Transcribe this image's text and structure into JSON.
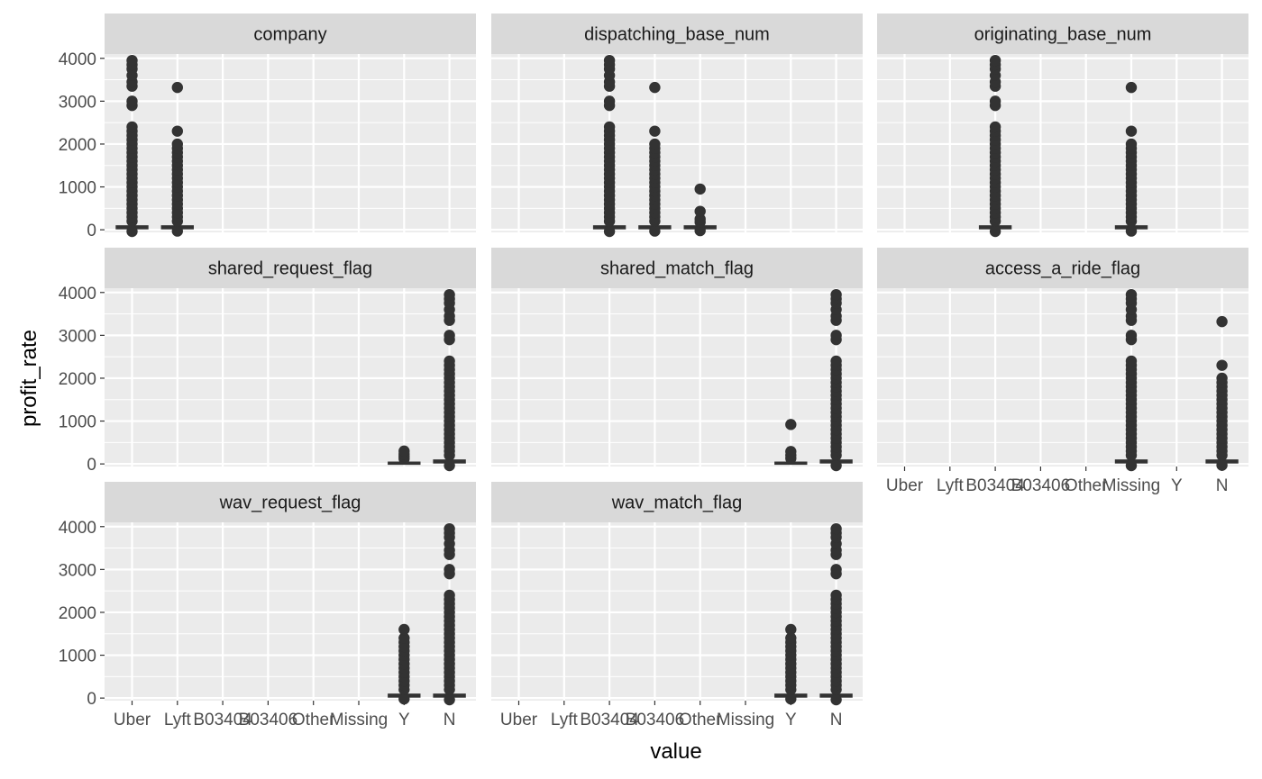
{
  "chart_data": {
    "type": "boxplot",
    "facet_by": "variable",
    "xlabel": "value",
    "ylabel": "profit_rate",
    "ylim": [
      -60,
      4100
    ],
    "yticks": [
      0,
      1000,
      2000,
      3000,
      4000
    ],
    "categories": [
      "Uber",
      "Lyft",
      "B03404",
      "B03406",
      "Other",
      "Missing",
      "Y",
      "N"
    ],
    "colors": {
      "panel": "#ebebeb",
      "strip": "#d9d9d9",
      "grid": "#ffffff",
      "marks": "#333333"
    },
    "facets": [
      {
        "label": "company",
        "boxes": [
          {
            "category": "Uber",
            "q1": 35,
            "median": 55,
            "q3": 80,
            "min": 0,
            "max": 180,
            "outliers": [
              -40,
              200,
              300,
              400,
              500,
              600,
              700,
              800,
              900,
              1000,
              1100,
              1200,
              1300,
              1400,
              1500,
              1600,
              1700,
              1800,
              1900,
              2000,
              2100,
              2200,
              2300,
              2400,
              2900,
              3000,
              3350,
              3450,
              3600,
              3750,
              3850,
              3950
            ]
          },
          {
            "category": "Lyft",
            "q1": 35,
            "median": 55,
            "q3": 80,
            "min": 0,
            "max": 180,
            "outliers": [
              -30,
              200,
              300,
              400,
              500,
              600,
              700,
              800,
              900,
              1000,
              1100,
              1200,
              1300,
              1400,
              1500,
              1600,
              1700,
              1800,
              1900,
              2000,
              2300,
              3320
            ]
          }
        ]
      },
      {
        "label": "dispatching_base_num",
        "boxes": [
          {
            "category": "B03404",
            "q1": 35,
            "median": 55,
            "q3": 80,
            "min": 0,
            "max": 180,
            "outliers": [
              -40,
              200,
              300,
              400,
              500,
              600,
              700,
              800,
              900,
              1000,
              1100,
              1200,
              1300,
              1400,
              1500,
              1600,
              1700,
              1800,
              1900,
              2000,
              2100,
              2200,
              2300,
              2400,
              2900,
              3000,
              3350,
              3450,
              3600,
              3750,
              3850,
              3950
            ]
          },
          {
            "category": "B03406",
            "q1": 35,
            "median": 55,
            "q3": 80,
            "min": 0,
            "max": 180,
            "outliers": [
              -30,
              200,
              300,
              400,
              500,
              600,
              700,
              800,
              900,
              1000,
              1100,
              1200,
              1300,
              1400,
              1500,
              1600,
              1700,
              1800,
              1900,
              2000,
              2300,
              3320
            ]
          },
          {
            "category": "Other",
            "q1": 35,
            "median": 55,
            "q3": 80,
            "min": 0,
            "max": 160,
            "outliers": [
              -20,
              180,
              250,
              430,
              950
            ]
          }
        ]
      },
      {
        "label": "originating_base_num",
        "boxes": [
          {
            "category": "B03404",
            "q1": 35,
            "median": 55,
            "q3": 80,
            "min": 0,
            "max": 180,
            "outliers": [
              -40,
              200,
              300,
              400,
              500,
              600,
              700,
              800,
              900,
              1000,
              1100,
              1200,
              1300,
              1400,
              1500,
              1600,
              1700,
              1800,
              1900,
              2000,
              2100,
              2200,
              2300,
              2400,
              2900,
              3000,
              3350,
              3450,
              3600,
              3750,
              3850,
              3950
            ]
          },
          {
            "category": "Missing",
            "q1": 35,
            "median": 55,
            "q3": 80,
            "min": 0,
            "max": 180,
            "outliers": [
              -30,
              200,
              300,
              400,
              500,
              600,
              700,
              800,
              900,
              1000,
              1100,
              1200,
              1300,
              1400,
              1500,
              1600,
              1700,
              1800,
              1900,
              2000,
              2300,
              3320
            ]
          }
        ]
      },
      {
        "label": "shared_request_flag",
        "boxes": [
          {
            "category": "Y",
            "q1": 5,
            "median": 15,
            "q3": 30,
            "min": 0,
            "max": 90,
            "outliers": [
              120,
              170,
              230,
              300
            ]
          },
          {
            "category": "N",
            "q1": 35,
            "median": 55,
            "q3": 80,
            "min": 0,
            "max": 180,
            "outliers": [
              -40,
              200,
              300,
              400,
              500,
              600,
              700,
              800,
              900,
              1000,
              1100,
              1200,
              1300,
              1400,
              1500,
              1600,
              1700,
              1800,
              1900,
              2000,
              2100,
              2200,
              2300,
              2400,
              2900,
              3000,
              3350,
              3450,
              3600,
              3750,
              3850,
              3950
            ]
          }
        ]
      },
      {
        "label": "shared_match_flag",
        "boxes": [
          {
            "category": "Y",
            "q1": 5,
            "median": 15,
            "q3": 30,
            "min": 0,
            "max": 90,
            "outliers": [
              130,
              200,
              290,
              920
            ]
          },
          {
            "category": "N",
            "q1": 35,
            "median": 55,
            "q3": 80,
            "min": 0,
            "max": 180,
            "outliers": [
              -40,
              200,
              300,
              400,
              500,
              600,
              700,
              800,
              900,
              1000,
              1100,
              1200,
              1300,
              1400,
              1500,
              1600,
              1700,
              1800,
              1900,
              2000,
              2100,
              2200,
              2300,
              2400,
              2900,
              3000,
              3350,
              3450,
              3600,
              3750,
              3850,
              3950
            ]
          }
        ]
      },
      {
        "label": "access_a_ride_flag",
        "boxes": [
          {
            "category": "Missing",
            "q1": 35,
            "median": 55,
            "q3": 80,
            "min": 0,
            "max": 180,
            "outliers": [
              -40,
              200,
              300,
              400,
              500,
              600,
              700,
              800,
              900,
              1000,
              1100,
              1200,
              1300,
              1400,
              1500,
              1600,
              1700,
              1800,
              1900,
              2000,
              2100,
              2200,
              2300,
              2400,
              2900,
              3000,
              3350,
              3450,
              3600,
              3750,
              3850,
              3950
            ]
          },
          {
            "category": "N",
            "q1": 35,
            "median": 55,
            "q3": 80,
            "min": 0,
            "max": 180,
            "outliers": [
              -30,
              200,
              300,
              400,
              500,
              600,
              700,
              800,
              900,
              1000,
              1100,
              1200,
              1300,
              1400,
              1500,
              1600,
              1700,
              1800,
              1900,
              2000,
              2300,
              3320
            ]
          }
        ]
      },
      {
        "label": "wav_request_flag",
        "boxes": [
          {
            "category": "Y",
            "q1": 35,
            "median": 55,
            "q3": 80,
            "min": 0,
            "max": 180,
            "outliers": [
              -20,
              200,
              300,
              400,
              500,
              600,
              700,
              800,
              900,
              1000,
              1100,
              1200,
              1300,
              1400,
              1600
            ]
          },
          {
            "category": "N",
            "q1": 35,
            "median": 55,
            "q3": 80,
            "min": 0,
            "max": 180,
            "outliers": [
              -40,
              200,
              300,
              400,
              500,
              600,
              700,
              800,
              900,
              1000,
              1100,
              1200,
              1300,
              1400,
              1500,
              1600,
              1700,
              1800,
              1900,
              2000,
              2100,
              2200,
              2300,
              2400,
              2900,
              3000,
              3350,
              3450,
              3600,
              3750,
              3850,
              3950
            ]
          }
        ]
      },
      {
        "label": "wav_match_flag",
        "boxes": [
          {
            "category": "Y",
            "q1": 35,
            "median": 55,
            "q3": 80,
            "min": 0,
            "max": 180,
            "outliers": [
              -20,
              200,
              300,
              400,
              500,
              600,
              700,
              800,
              900,
              1000,
              1100,
              1200,
              1300,
              1400,
              1600
            ]
          },
          {
            "category": "N",
            "q1": 35,
            "median": 55,
            "q3": 80,
            "min": 0,
            "max": 180,
            "outliers": [
              -40,
              200,
              300,
              400,
              500,
              600,
              700,
              800,
              900,
              1000,
              1100,
              1200,
              1300,
              1400,
              1500,
              1600,
              1700,
              1800,
              1900,
              2000,
              2100,
              2200,
              2300,
              2400,
              2900,
              3000,
              3350,
              3450,
              3600,
              3750,
              3850,
              3950
            ]
          }
        ]
      }
    ]
  }
}
